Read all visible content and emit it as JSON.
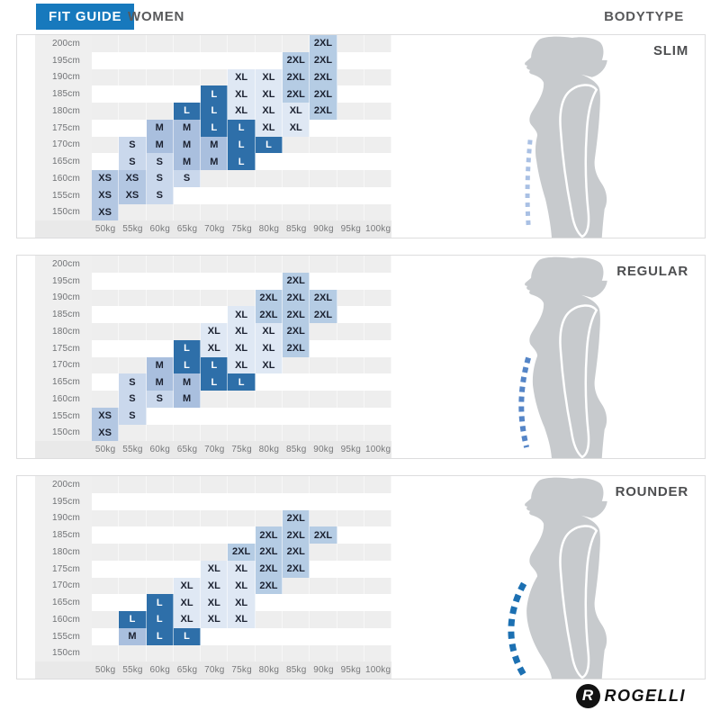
{
  "header": {
    "fit_guide_label": "FIT GUIDE",
    "gender_label": "WOMEN",
    "bodytype_label": "BODYTYPE"
  },
  "colors": {
    "accent_blue": "#1779bd",
    "header_text": "#58595b",
    "silhouette_gray": "#c7cacd",
    "row_stripe": "#eeeeee",
    "label_band": "#efefef",
    "axis_band": "#e9e9e9"
  },
  "size_styles": {
    "XS": {
      "bg": "#b3c7e2",
      "fg": "#1b2130"
    },
    "S": {
      "bg": "#cad8ec",
      "fg": "#1b2130"
    },
    "M": {
      "bg": "#a9bfde",
      "fg": "#1b2130"
    },
    "L": {
      "bg": "#2e6fa9",
      "fg": "#ffffff"
    },
    "XL": {
      "bg": "#dfe8f4",
      "fg": "#1b2130"
    },
    "2XL": {
      "bg": "#b5cce4",
      "fg": "#1b2130"
    }
  },
  "panels": [
    {
      "bodytype": "SLIM",
      "dash_color": "#a9c0e4"
    },
    {
      "bodytype": "REGULAR",
      "dash_color": "#5585c7"
    },
    {
      "bodytype": "ROUNDER",
      "dash_color": "#1c70b2"
    }
  ],
  "logo": {
    "brand": "ROGELLI",
    "glyph": "R"
  },
  "chart_data": {
    "type": "heatmap",
    "title": "FIT GUIDE WOMEN by BODYTYPE",
    "x_categories": [
      "50kg",
      "55kg",
      "60kg",
      "65kg",
      "70kg",
      "75kg",
      "80kg",
      "85kg",
      "90kg",
      "95kg",
      "100kg"
    ],
    "y_categories": [
      "200cm",
      "195cm",
      "190cm",
      "185cm",
      "180cm",
      "175cm",
      "170cm",
      "165cm",
      "160cm",
      "155cm",
      "150cm"
    ],
    "cell_values": [
      "XS",
      "S",
      "M",
      "L",
      "XL",
      "2XL"
    ],
    "series": [
      {
        "name": "SLIM",
        "grid": [
          [
            "",
            "",
            "",
            "",
            "",
            "",
            "",
            "",
            "2XL",
            "",
            ""
          ],
          [
            "",
            "",
            "",
            "",
            "",
            "",
            "",
            "2XL",
            "2XL",
            "",
            ""
          ],
          [
            "",
            "",
            "",
            "",
            "",
            "XL",
            "XL",
            "2XL",
            "2XL",
            "",
            ""
          ],
          [
            "",
            "",
            "",
            "",
            "L",
            "XL",
            "XL",
            "2XL",
            "2XL",
            "",
            ""
          ],
          [
            "",
            "",
            "",
            "L",
            "L",
            "XL",
            "XL",
            "XL",
            "2XL",
            "",
            ""
          ],
          [
            "",
            "",
            "M",
            "M",
            "L",
            "L",
            "XL",
            "XL",
            "",
            "",
            ""
          ],
          [
            "",
            "S",
            "M",
            "M",
            "M",
            "L",
            "L",
            "",
            "",
            "",
            ""
          ],
          [
            "",
            "S",
            "S",
            "M",
            "M",
            "L",
            "",
            "",
            "",
            "",
            ""
          ],
          [
            "XS",
            "XS",
            "S",
            "S",
            "",
            "",
            "",
            "",
            "",
            "",
            ""
          ],
          [
            "XS",
            "XS",
            "S",
            "",
            "",
            "",
            "",
            "",
            "",
            "",
            ""
          ],
          [
            "XS",
            "",
            "",
            "",
            "",
            "",
            "",
            "",
            "",
            "",
            ""
          ]
        ]
      },
      {
        "name": "REGULAR",
        "grid": [
          [
            "",
            "",
            "",
            "",
            "",
            "",
            "",
            "",
            "",
            "",
            ""
          ],
          [
            "",
            "",
            "",
            "",
            "",
            "",
            "",
            "2XL",
            "",
            "",
            ""
          ],
          [
            "",
            "",
            "",
            "",
            "",
            "",
            "2XL",
            "2XL",
            "2XL",
            "",
            ""
          ],
          [
            "",
            "",
            "",
            "",
            "",
            "XL",
            "2XL",
            "2XL",
            "2XL",
            "",
            ""
          ],
          [
            "",
            "",
            "",
            "",
            "XL",
            "XL",
            "XL",
            "2XL",
            "",
            "",
            ""
          ],
          [
            "",
            "",
            "",
            "L",
            "XL",
            "XL",
            "XL",
            "2XL",
            "",
            "",
            ""
          ],
          [
            "",
            "",
            "M",
            "L",
            "L",
            "XL",
            "XL",
            "",
            "",
            "",
            ""
          ],
          [
            "",
            "S",
            "M",
            "M",
            "L",
            "L",
            "",
            "",
            "",
            "",
            ""
          ],
          [
            "",
            "S",
            "S",
            "M",
            "",
            "",
            "",
            "",
            "",
            "",
            ""
          ],
          [
            "XS",
            "S",
            "",
            "",
            "",
            "",
            "",
            "",
            "",
            "",
            ""
          ],
          [
            "XS",
            "",
            "",
            "",
            "",
            "",
            "",
            "",
            "",
            "",
            ""
          ]
        ]
      },
      {
        "name": "ROUNDER",
        "grid": [
          [
            "",
            "",
            "",
            "",
            "",
            "",
            "",
            "",
            "",
            "",
            ""
          ],
          [
            "",
            "",
            "",
            "",
            "",
            "",
            "",
            "",
            "",
            "",
            ""
          ],
          [
            "",
            "",
            "",
            "",
            "",
            "",
            "",
            "2XL",
            "",
            "",
            ""
          ],
          [
            "",
            "",
            "",
            "",
            "",
            "",
            "2XL",
            "2XL",
            "2XL",
            "",
            ""
          ],
          [
            "",
            "",
            "",
            "",
            "",
            "2XL",
            "2XL",
            "2XL",
            "",
            "",
            ""
          ],
          [
            "",
            "",
            "",
            "",
            "XL",
            "XL",
            "2XL",
            "2XL",
            "",
            "",
            ""
          ],
          [
            "",
            "",
            "",
            "XL",
            "XL",
            "XL",
            "2XL",
            "",
            "",
            "",
            ""
          ],
          [
            "",
            "",
            "L",
            "XL",
            "XL",
            "XL",
            "",
            "",
            "",
            "",
            ""
          ],
          [
            "",
            "L",
            "L",
            "XL",
            "XL",
            "XL",
            "",
            "",
            "",
            "",
            ""
          ],
          [
            "",
            "M",
            "L",
            "L",
            "",
            "",
            "",
            "",
            "",
            "",
            ""
          ],
          [
            "",
            "",
            "",
            "",
            "",
            "",
            "",
            "",
            "",
            "",
            ""
          ]
        ]
      }
    ]
  }
}
